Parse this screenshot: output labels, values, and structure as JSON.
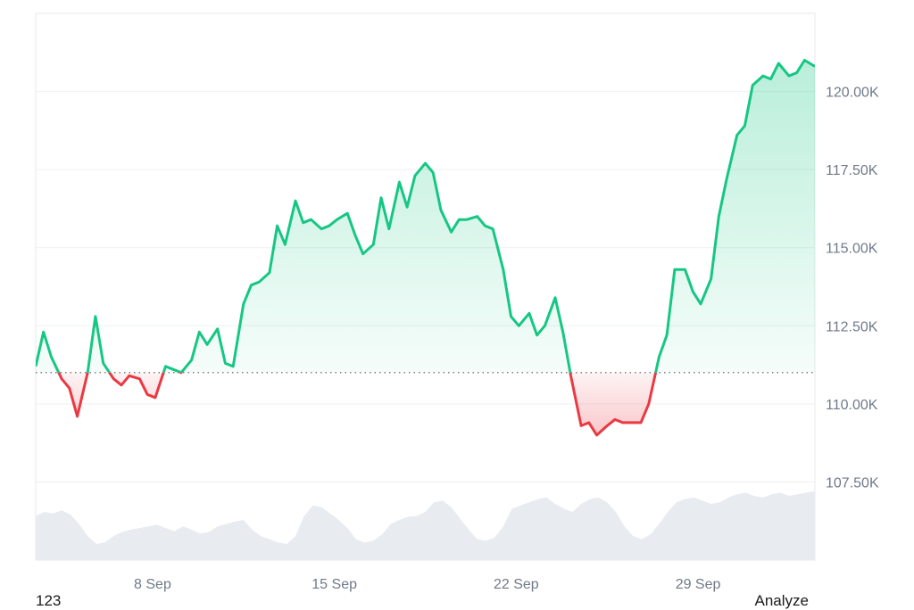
{
  "chart_data": {
    "type": "area",
    "title": "",
    "xlabel": "",
    "ylabel": "",
    "x_ticks": [
      "8 Sep",
      "15 Sep",
      "22 Sep",
      "29 Sep"
    ],
    "y_ticks": [
      "120.00K",
      "117.50K",
      "115.00K",
      "112.50K",
      "110.00K",
      "107.50K"
    ],
    "y_tick_values": [
      120000,
      117500,
      115000,
      112500,
      110000,
      107500
    ],
    "ylim": [
      105000,
      122500
    ],
    "xlim_days": [
      0,
      30
    ],
    "baseline": 111000,
    "grid": "horizontal",
    "x_unit": "days since start of the price series",
    "series": [
      {
        "name": "Price",
        "x": [
          0,
          0.3,
          0.6,
          1,
          1.3,
          1.6,
          2,
          2.3,
          2.6,
          3,
          3.3,
          3.6,
          4,
          4.3,
          4.6,
          5,
          5.3,
          5.6,
          6,
          6.3,
          6.6,
          7,
          7.3,
          7.6,
          8,
          8.3,
          8.6,
          9,
          9.3,
          9.6,
          10,
          10.3,
          10.6,
          11,
          11.3,
          11.6,
          12,
          12.3,
          12.6,
          13,
          13.3,
          13.6,
          14,
          14.3,
          14.6,
          15,
          15.3,
          15.6,
          16,
          16.3,
          16.6,
          17,
          17.3,
          17.6,
          18,
          18.3,
          18.6,
          19,
          19.3,
          19.6,
          20,
          20.3,
          20.6,
          21,
          21.3,
          21.6,
          22,
          22.3,
          22.6,
          23,
          23.3,
          23.6,
          24,
          24.3,
          24.6,
          25,
          25.3,
          25.6,
          26,
          26.3,
          26.6,
          27,
          27.3,
          27.6,
          28,
          28.3,
          28.6,
          29,
          29.3,
          29.6,
          30
        ],
        "y": [
          111200,
          112300,
          111500,
          110800,
          110500,
          109600,
          111000,
          112800,
          111300,
          110800,
          110600,
          110900,
          110800,
          110300,
          110200,
          111200,
          111100,
          111000,
          111400,
          112300,
          111900,
          112400,
          111300,
          111200,
          113200,
          113800,
          113900,
          114200,
          115700,
          115100,
          116500,
          115800,
          115900,
          115600,
          115700,
          115900,
          116100,
          115400,
          114800,
          115100,
          116600,
          115600,
          117100,
          116300,
          117300,
          117700,
          117400,
          116200,
          115500,
          115900,
          115900,
          116000,
          115700,
          115600,
          114300,
          112800,
          112500,
          112900,
          112200,
          112500,
          113400,
          112300,
          110900,
          109300,
          109400,
          109000,
          109300,
          109500,
          109400,
          109400,
          109400,
          110000,
          111500,
          112200,
          114300,
          114300,
          113600,
          113200,
          114000,
          116000,
          117200,
          118600,
          118900,
          120200,
          120500,
          120400,
          120900,
          120500,
          120600,
          121000,
          120800
        ]
      }
    ]
  },
  "volume": {
    "color": "#e8ecf0",
    "values": [
      0.55,
      0.6,
      0.58,
      0.62,
      0.57,
      0.45,
      0.3,
      0.2,
      0.22,
      0.3,
      0.35,
      0.38,
      0.4,
      0.42,
      0.44,
      0.4,
      0.36,
      0.42,
      0.38,
      0.33,
      0.35,
      0.42,
      0.45,
      0.48,
      0.5,
      0.38,
      0.3,
      0.26,
      0.22,
      0.2,
      0.3,
      0.55,
      0.68,
      0.66,
      0.58,
      0.5,
      0.4,
      0.26,
      0.22,
      0.24,
      0.32,
      0.45,
      0.5,
      0.54,
      0.55,
      0.6,
      0.72,
      0.74,
      0.66,
      0.52,
      0.38,
      0.26,
      0.24,
      0.28,
      0.42,
      0.64,
      0.68,
      0.72,
      0.76,
      0.78,
      0.7,
      0.64,
      0.6,
      0.7,
      0.76,
      0.78,
      0.72,
      0.6,
      0.42,
      0.3,
      0.26,
      0.32,
      0.45,
      0.6,
      0.72,
      0.76,
      0.78,
      0.74,
      0.7,
      0.72,
      0.78,
      0.82,
      0.84,
      0.8,
      0.78,
      0.82,
      0.84,
      0.8,
      0.82,
      0.84,
      0.86
    ]
  },
  "colors": {
    "up_line": "#16c784",
    "down_line": "#ea3943",
    "up_fill": "#16c784",
    "down_fill": "#ea3943",
    "grid": "#eef0f3",
    "border": "#e6e8ec",
    "tick_text": "#707a8a",
    "baseline_dots": "#555555"
  },
  "footer": {
    "left_text": "123",
    "right_text": "Analyze"
  }
}
